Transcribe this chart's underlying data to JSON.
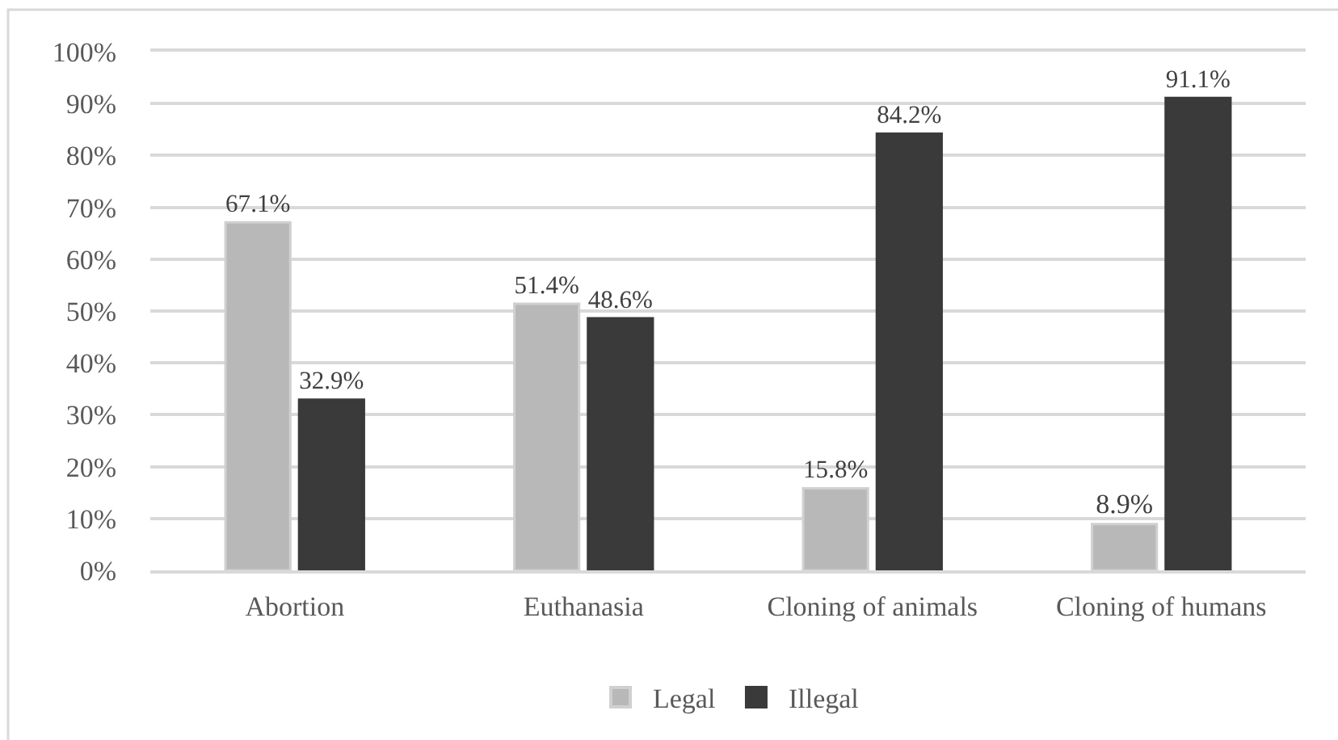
{
  "chart_data": {
    "type": "bar",
    "categories": [
      "Abortion",
      "Euthanasia",
      "Cloning of animals",
      "Cloning of humans"
    ],
    "series": [
      {
        "name": "Legal",
        "color": "#b8b8b8",
        "values": [
          67.1,
          51.4,
          15.8,
          8.9
        ],
        "value_labels": [
          "67.1%",
          "51.4%",
          "15.8%",
          "8.9%"
        ]
      },
      {
        "name": "Illegal",
        "color": "#3a3a3a",
        "values": [
          32.9,
          48.6,
          84.2,
          91.1
        ],
        "value_labels": [
          "32.9%",
          "48.6%",
          "84.2%",
          "91.1%"
        ]
      }
    ],
    "ylim": [
      0,
      100
    ],
    "yticks": [
      {
        "value": 0,
        "label": "0%"
      },
      {
        "value": 10,
        "label": "10%"
      },
      {
        "value": 20,
        "label": "20%"
      },
      {
        "value": 30,
        "label": "30%"
      },
      {
        "value": 40,
        "label": "40%"
      },
      {
        "value": 50,
        "label": "50%"
      },
      {
        "value": 60,
        "label": "60%"
      },
      {
        "value": 70,
        "label": "70%"
      },
      {
        "value": 80,
        "label": "80%"
      },
      {
        "value": 90,
        "label": "90%"
      },
      {
        "value": 100,
        "label": "100%"
      }
    ],
    "grid": "y",
    "legend": "bottom"
  }
}
